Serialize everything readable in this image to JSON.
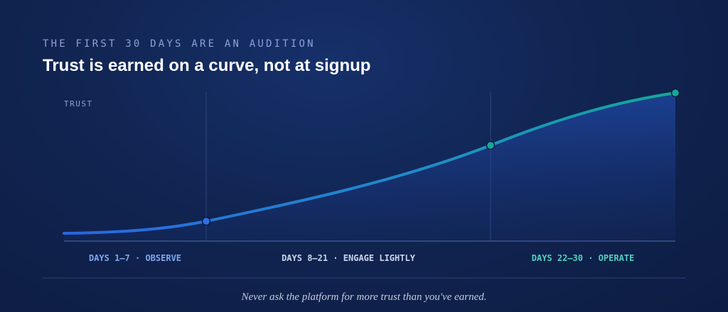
{
  "header": {
    "eyebrow": "THE FIRST 30 DAYS ARE AN AUDITION",
    "title": "Trust is earned on a curve, not at signup"
  },
  "chart": {
    "axis_label": "TRUST",
    "phases": [
      {
        "label": "DAYS 1–7 · OBSERVE"
      },
      {
        "label": "DAYS 8–21 · ENGAGE LIGHTLY"
      },
      {
        "label": "DAYS 22–30 · OPERATE"
      }
    ]
  },
  "footer": {
    "quote": "Never ask the platform for more trust than you've earned."
  }
}
